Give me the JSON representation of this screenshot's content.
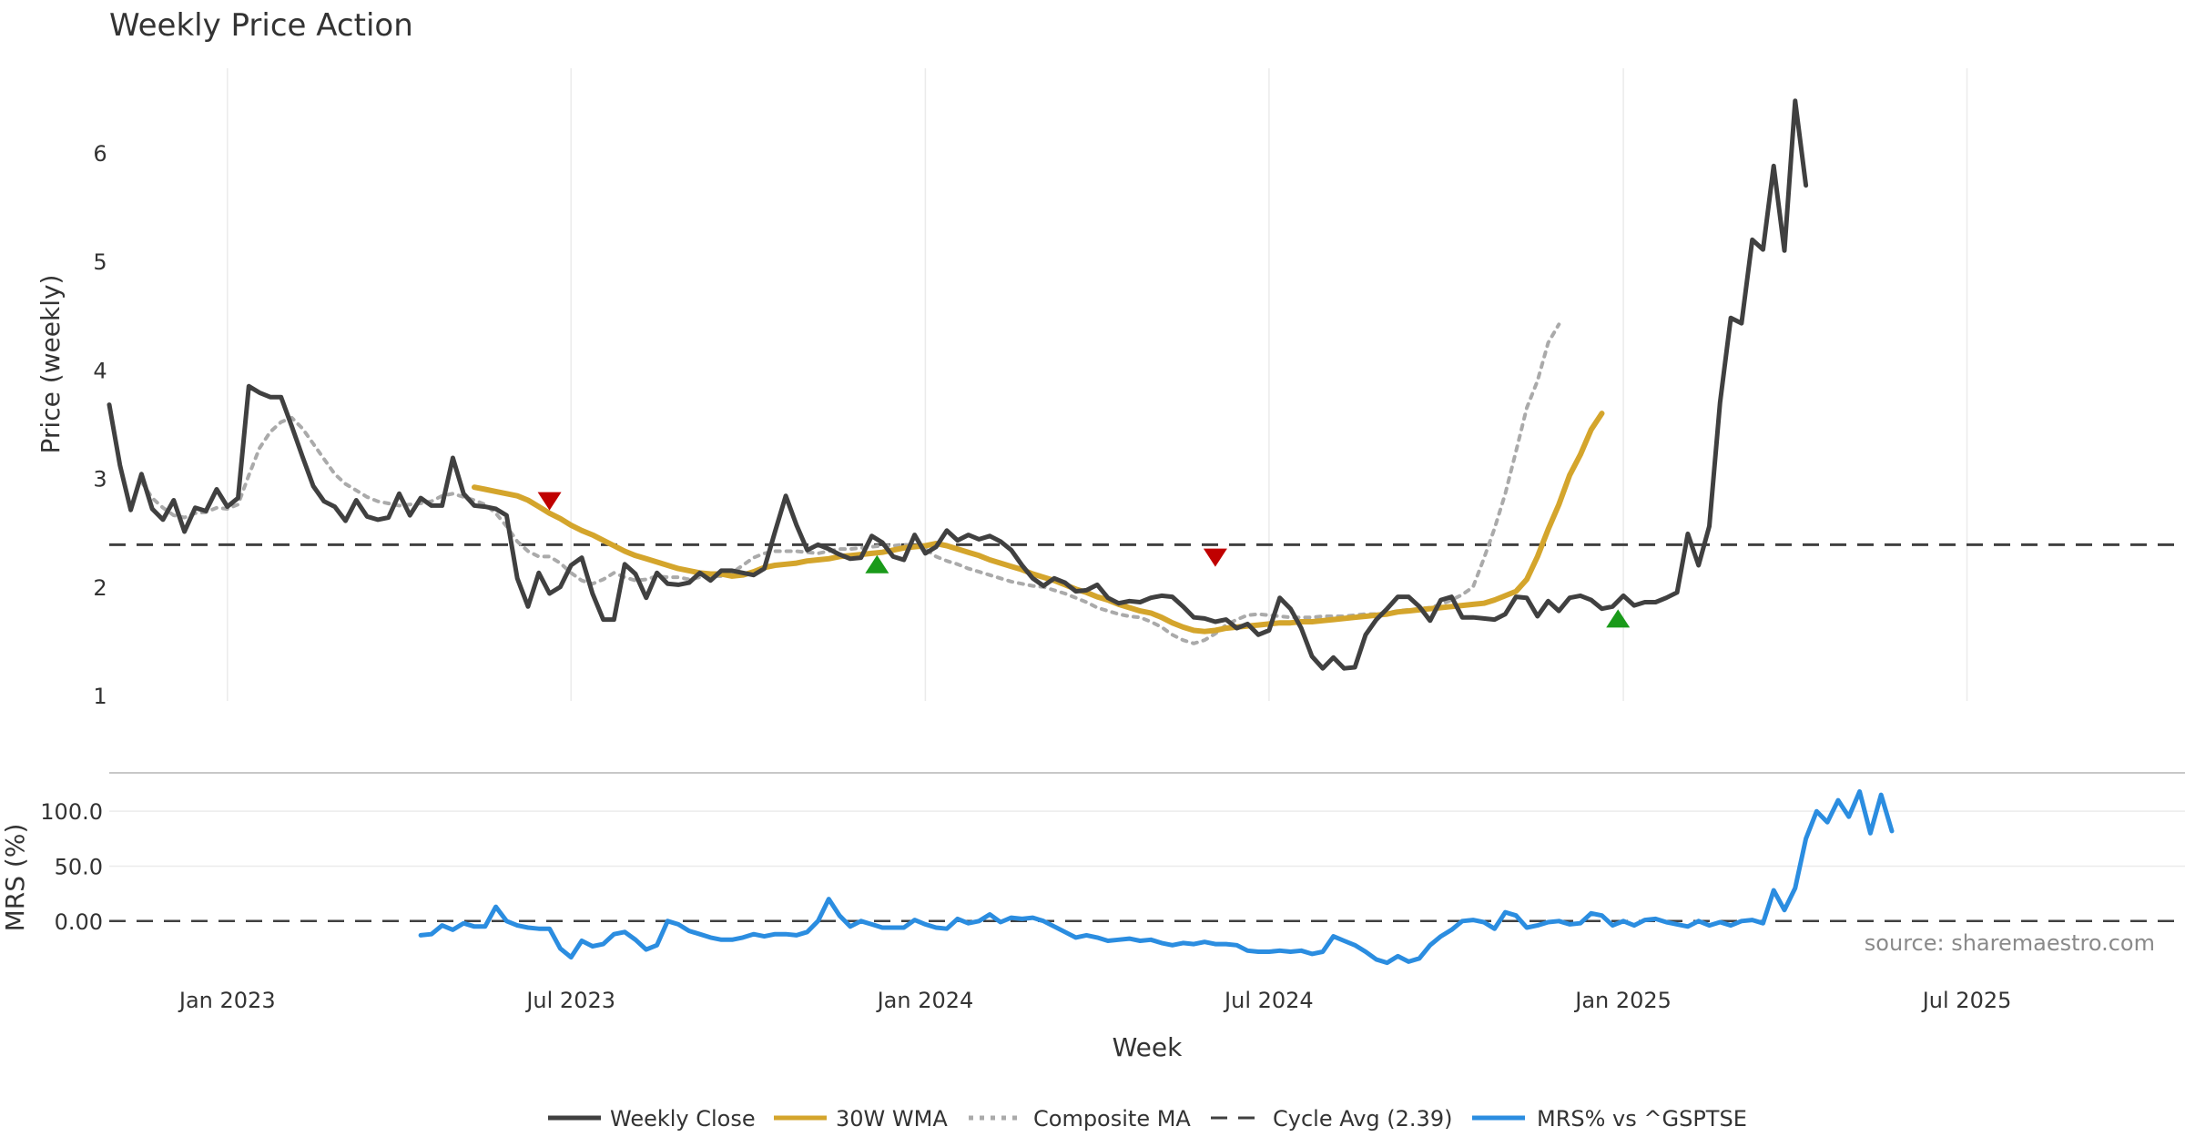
{
  "chart_data": [
    {
      "type": "line",
      "title": "Weekly Price Action",
      "xlabel": "Week",
      "ylabel": "Price (weekly)",
      "ylim": [
        0.95,
        6.78
      ],
      "yticks": [
        "1",
        "2",
        "3",
        "4",
        "5",
        "6"
      ],
      "ytick_values": [
        1,
        2,
        3,
        4,
        5,
        6
      ],
      "xticks": [
        "Jan 2023",
        "Jul 2023",
        "Jan 2024",
        "Jul 2024",
        "Jan 2025",
        "Jul 2025"
      ],
      "xtick_weeks": [
        11,
        43,
        76,
        108,
        141,
        173
      ],
      "x_range_weeks": [
        0,
        193.3
      ],
      "grid": "vertical",
      "series": [
        {
          "name": "Weekly Close",
          "color": "#404040",
          "start_week": 0,
          "values": [
            3.68,
            3.12,
            2.71,
            3.04,
            2.72,
            2.62,
            2.8,
            2.51,
            2.73,
            2.7,
            2.9,
            2.74,
            2.82,
            3.85,
            3.79,
            3.75,
            3.75,
            3.48,
            3.2,
            2.93,
            2.79,
            2.74,
            2.61,
            2.8,
            2.65,
            2.62,
            2.64,
            2.86,
            2.66,
            2.82,
            2.75,
            2.75,
            3.19,
            2.86,
            2.75,
            2.74,
            2.72,
            2.66,
            2.08,
            1.82,
            2.13,
            1.94,
            2.0,
            2.2,
            2.27,
            1.94,
            1.7,
            1.7,
            2.21,
            2.12,
            1.9,
            2.13,
            2.03,
            2.02,
            2.04,
            2.13,
            2.06,
            2.15,
            2.15,
            2.13,
            2.11,
            2.17,
            2.51,
            2.84,
            2.57,
            2.34,
            2.39,
            2.35,
            2.3,
            2.26,
            2.27,
            2.47,
            2.41,
            2.28,
            2.25,
            2.48,
            2.31,
            2.37,
            2.52,
            2.43,
            2.48,
            2.44,
            2.47,
            2.42,
            2.34,
            2.2,
            2.08,
            2.01,
            2.08,
            2.04,
            1.96,
            1.97,
            2.02,
            1.9,
            1.85,
            1.87,
            1.86,
            1.9,
            1.92,
            1.91,
            1.82,
            1.72,
            1.71,
            1.68,
            1.7,
            1.62,
            1.66,
            1.56,
            1.6,
            1.9,
            1.8,
            1.62,
            1.36,
            1.25,
            1.35,
            1.25,
            1.26,
            1.56,
            1.7,
            1.8,
            1.91,
            1.91,
            1.82,
            1.69,
            1.88,
            1.91,
            1.72,
            1.72,
            1.71,
            1.7,
            1.75,
            1.91,
            1.9,
            1.73,
            1.87,
            1.78,
            1.9,
            1.92,
            1.88,
            1.8,
            1.82,
            1.92,
            1.83,
            1.86,
            1.86,
            1.9,
            1.95,
            2.49,
            2.2,
            2.56,
            3.7,
            4.48,
            4.43,
            5.2,
            5.11,
            5.88,
            5.1,
            6.48,
            5.7
          ]
        },
        {
          "name": "30W WMA",
          "color": "#d4a52c",
          "start_week": 34,
          "values": [
            2.92,
            2.9,
            2.88,
            2.86,
            2.84,
            2.8,
            2.74,
            2.68,
            2.63,
            2.57,
            2.52,
            2.48,
            2.43,
            2.38,
            2.33,
            2.29,
            2.26,
            2.23,
            2.2,
            2.17,
            2.15,
            2.13,
            2.12,
            2.12,
            2.1,
            2.11,
            2.14,
            2.18,
            2.2,
            2.21,
            2.22,
            2.24,
            2.25,
            2.26,
            2.28,
            2.29,
            2.3,
            2.31,
            2.32,
            2.34,
            2.36,
            2.37,
            2.38,
            2.4,
            2.38,
            2.35,
            2.32,
            2.29,
            2.25,
            2.22,
            2.19,
            2.16,
            2.12,
            2.09,
            2.06,
            2.02,
            1.98,
            1.95,
            1.91,
            1.88,
            1.84,
            1.81,
            1.78,
            1.76,
            1.72,
            1.67,
            1.63,
            1.6,
            1.59,
            1.6,
            1.62,
            1.63,
            1.64,
            1.65,
            1.66,
            1.67,
            1.67,
            1.68,
            1.68,
            1.69,
            1.7,
            1.71,
            1.72,
            1.73,
            1.74,
            1.75,
            1.77,
            1.78,
            1.79,
            1.8,
            1.81,
            1.82,
            1.83,
            1.84,
            1.85,
            1.88,
            1.92,
            1.96,
            2.07,
            2.28,
            2.53,
            2.76,
            3.03,
            3.22,
            3.45,
            3.6
          ]
        },
        {
          "name": "Composite MA",
          "color": "#aaaaaa",
          "start_week": 3,
          "values": [
            2.97,
            2.82,
            2.73,
            2.66,
            2.64,
            2.68,
            2.69,
            2.73,
            2.72,
            2.76,
            3.03,
            3.28,
            3.43,
            3.52,
            3.56,
            3.46,
            3.32,
            3.18,
            3.04,
            2.95,
            2.89,
            2.83,
            2.79,
            2.77,
            2.75,
            2.76,
            2.77,
            2.79,
            2.84,
            2.86,
            2.83,
            2.8,
            2.76,
            2.68,
            2.56,
            2.42,
            2.33,
            2.28,
            2.28,
            2.22,
            2.13,
            2.06,
            2.03,
            2.07,
            2.13,
            2.09,
            2.06,
            2.07,
            2.1,
            2.09,
            2.09,
            2.07,
            2.09,
            2.1,
            2.1,
            2.13,
            2.2,
            2.27,
            2.31,
            2.33,
            2.33,
            2.33,
            2.32,
            2.31,
            2.33,
            2.35,
            2.35,
            2.36,
            2.37,
            2.38,
            2.38,
            2.39,
            2.38,
            2.35,
            2.28,
            2.24,
            2.21,
            2.17,
            2.14,
            2.11,
            2.08,
            2.05,
            2.03,
            2.01,
            2.0,
            1.97,
            1.94,
            1.9,
            1.86,
            1.81,
            1.78,
            1.75,
            1.73,
            1.72,
            1.68,
            1.63,
            1.56,
            1.51,
            1.48,
            1.51,
            1.57,
            1.65,
            1.7,
            1.74,
            1.75,
            1.74,
            1.73,
            1.72,
            1.72,
            1.72,
            1.73,
            1.73,
            1.73,
            1.74,
            1.75,
            1.75,
            1.76,
            1.78,
            1.79,
            1.8,
            1.81,
            1.84,
            1.88,
            1.93,
            2.0,
            2.26,
            2.54,
            2.86,
            3.25,
            3.65,
            3.9,
            4.25,
            4.42
          ]
        },
        {
          "name": "Cycle Avg (2.39)",
          "color": "#404040",
          "constant": 2.39
        }
      ],
      "markers": [
        {
          "kind": "sell",
          "color": "#c00000",
          "week": 41,
          "value": 2.79
        },
        {
          "kind": "buy",
          "color": "#1a9a1a",
          "week": 71.5,
          "value": 2.21
        },
        {
          "kind": "sell",
          "color": "#c00000",
          "week": 103,
          "value": 2.27
        },
        {
          "kind": "buy",
          "color": "#1a9a1a",
          "week": 140.5,
          "value": 1.71
        }
      ]
    },
    {
      "type": "line",
      "ylabel": "MRS (%)",
      "ylim": [
        -40,
        130
      ],
      "yticks": [
        "100.0",
        "50.0",
        "0.00"
      ],
      "ytick_values": [
        100,
        50,
        0
      ],
      "reference_line": 0,
      "annotation": "source: sharemaestro.com",
      "series": [
        {
          "name": "MRS% vs ^GSPTSE",
          "color": "#2b8de0",
          "start_week": 29,
          "values": [
            -13,
            -12,
            -4,
            -8,
            -2,
            -5,
            -5,
            13,
            0,
            -4,
            -6,
            -7,
            -7,
            -25,
            -33,
            -18,
            -23,
            -21,
            -12,
            -10,
            -17,
            -26,
            -22,
            0,
            -3,
            -9,
            -12,
            -15,
            -17,
            -17,
            -15,
            -12,
            -14,
            -12,
            -12,
            -13,
            -10,
            0,
            20,
            5,
            -5,
            0,
            -3,
            -6,
            -6,
            -6,
            1,
            -3,
            -6,
            -7,
            2,
            -2,
            0,
            6,
            -1,
            3,
            2,
            3,
            0,
            -5,
            -10,
            -15,
            -13,
            -15,
            -18,
            -17,
            -16,
            -18,
            -17,
            -20,
            -22,
            -20,
            -21,
            -19,
            -21,
            -21,
            -22,
            -27,
            -28,
            -28,
            -27,
            -28,
            -27,
            -30,
            -28,
            -14,
            -18,
            -22,
            -28,
            -35,
            -38,
            -32,
            -37,
            -34,
            -22,
            -14,
            -8,
            0,
            1,
            -1,
            -7,
            8,
            5,
            -6,
            -4,
            -1,
            0,
            -3,
            -2,
            7,
            5,
            -4,
            0,
            -4,
            1,
            2,
            -1,
            -3,
            -5,
            0,
            -4,
            -1,
            -4,
            0,
            1,
            -2,
            28,
            10,
            30,
            75,
            100,
            90,
            110,
            95,
            118,
            80,
            115,
            82
          ]
        }
      ]
    }
  ],
  "legend": [
    {
      "label": "Weekly Close",
      "style": "solid",
      "color": "#404040"
    },
    {
      "label": "30W WMA",
      "style": "solid",
      "color": "#d4a52c"
    },
    {
      "label": "Composite MA",
      "style": "dotted",
      "color": "#aaaaaa"
    },
    {
      "label": "Cycle Avg (2.39)",
      "style": "dashed",
      "color": "#404040"
    },
    {
      "label": "MRS% vs ^GSPTSE",
      "style": "solid",
      "color": "#2b8de0"
    }
  ]
}
